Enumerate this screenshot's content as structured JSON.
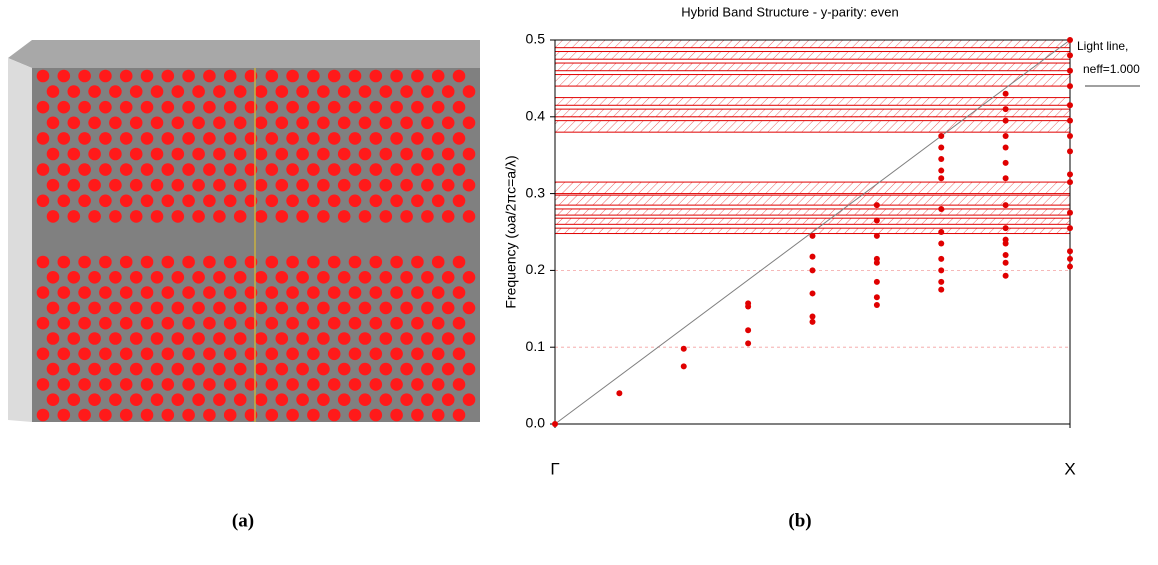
{
  "chart_data": {
    "type": "scatter",
    "title": "Hybrid Band Structure - y-parity: even",
    "y_label": "Frequency (ωa/2πc=a/λ)",
    "xlim": [
      0,
      0.5
    ],
    "xticks": [
      {
        "value": 0,
        "label": "Γ"
      },
      {
        "value": 0.5,
        "label": "X"
      }
    ],
    "ylim": [
      0,
      0.5
    ],
    "yticks": [
      {
        "value": 0,
        "label": "0.0"
      },
      0.1,
      0.2,
      0.3,
      0.4,
      0.5
    ],
    "grid": true,
    "color": "#e00000",
    "x": [
      0,
      0.0625,
      0.125,
      0.125,
      0.1875,
      0.1875,
      0.1875,
      0.1875,
      0.25,
      0.25,
      0.25,
      0.25,
      0.25,
      0.25,
      0.3125,
      0.3125,
      0.3125,
      0.3125,
      0.3125,
      0.3125,
      0.3125,
      0.3125,
      0.375,
      0.375,
      0.375,
      0.375,
      0.375,
      0.375,
      0.375,
      0.375,
      0.375,
      0.375,
      0.375,
      0.375,
      0.4375,
      0.4375,
      0.4375,
      0.4375,
      0.4375,
      0.4375,
      0.4375,
      0.4375,
      0.4375,
      0.4375,
      0.4375,
      0.4375,
      0.4375,
      0.4375,
      0.5,
      0.5,
      0.5,
      0.5,
      0.5,
      0.5,
      0.5,
      0.5,
      0.5,
      0.5,
      0.5,
      0.5,
      0.5,
      0.5,
      0.5
    ],
    "values": [
      0,
      0.04,
      0.075,
      0.098,
      0.105,
      0.122,
      0.153,
      0.157,
      0.133,
      0.14,
      0.17,
      0.2,
      0.218,
      0.245,
      0.155,
      0.165,
      0.185,
      0.21,
      0.215,
      0.245,
      0.265,
      0.285,
      0.175,
      0.185,
      0.2,
      0.215,
      0.235,
      0.25,
      0.28,
      0.32,
      0.33,
      0.345,
      0.36,
      0.375,
      0.193,
      0.21,
      0.22,
      0.235,
      0.24,
      0.255,
      0.285,
      0.32,
      0.34,
      0.36,
      0.375,
      0.395,
      0.41,
      0.43,
      0.205,
      0.215,
      0.225,
      0.255,
      0.275,
      0.315,
      0.325,
      0.355,
      0.375,
      0.395,
      0.415,
      0.44,
      0.46,
      0.48,
      0.5
    ],
    "bands": [
      [
        0.248,
        0.255
      ],
      [
        0.26,
        0.268
      ],
      [
        0.272,
        0.28
      ],
      [
        0.285,
        0.298
      ],
      [
        0.3,
        0.315
      ],
      [
        0.38,
        0.395
      ],
      [
        0.4,
        0.41
      ],
      [
        0.415,
        0.425
      ],
      [
        0.44,
        0.455
      ],
      [
        0.46,
        0.47
      ],
      [
        0.475,
        0.485
      ],
      [
        0.49,
        0.5
      ]
    ],
    "light_line": {
      "label_lines": [
        "Light line,",
        "neff=1.000"
      ],
      "x": [
        0,
        0.5
      ],
      "values": [
        0,
        0.5
      ],
      "color": "#808080"
    }
  },
  "captions": [
    "(a)",
    "(b)"
  ]
}
